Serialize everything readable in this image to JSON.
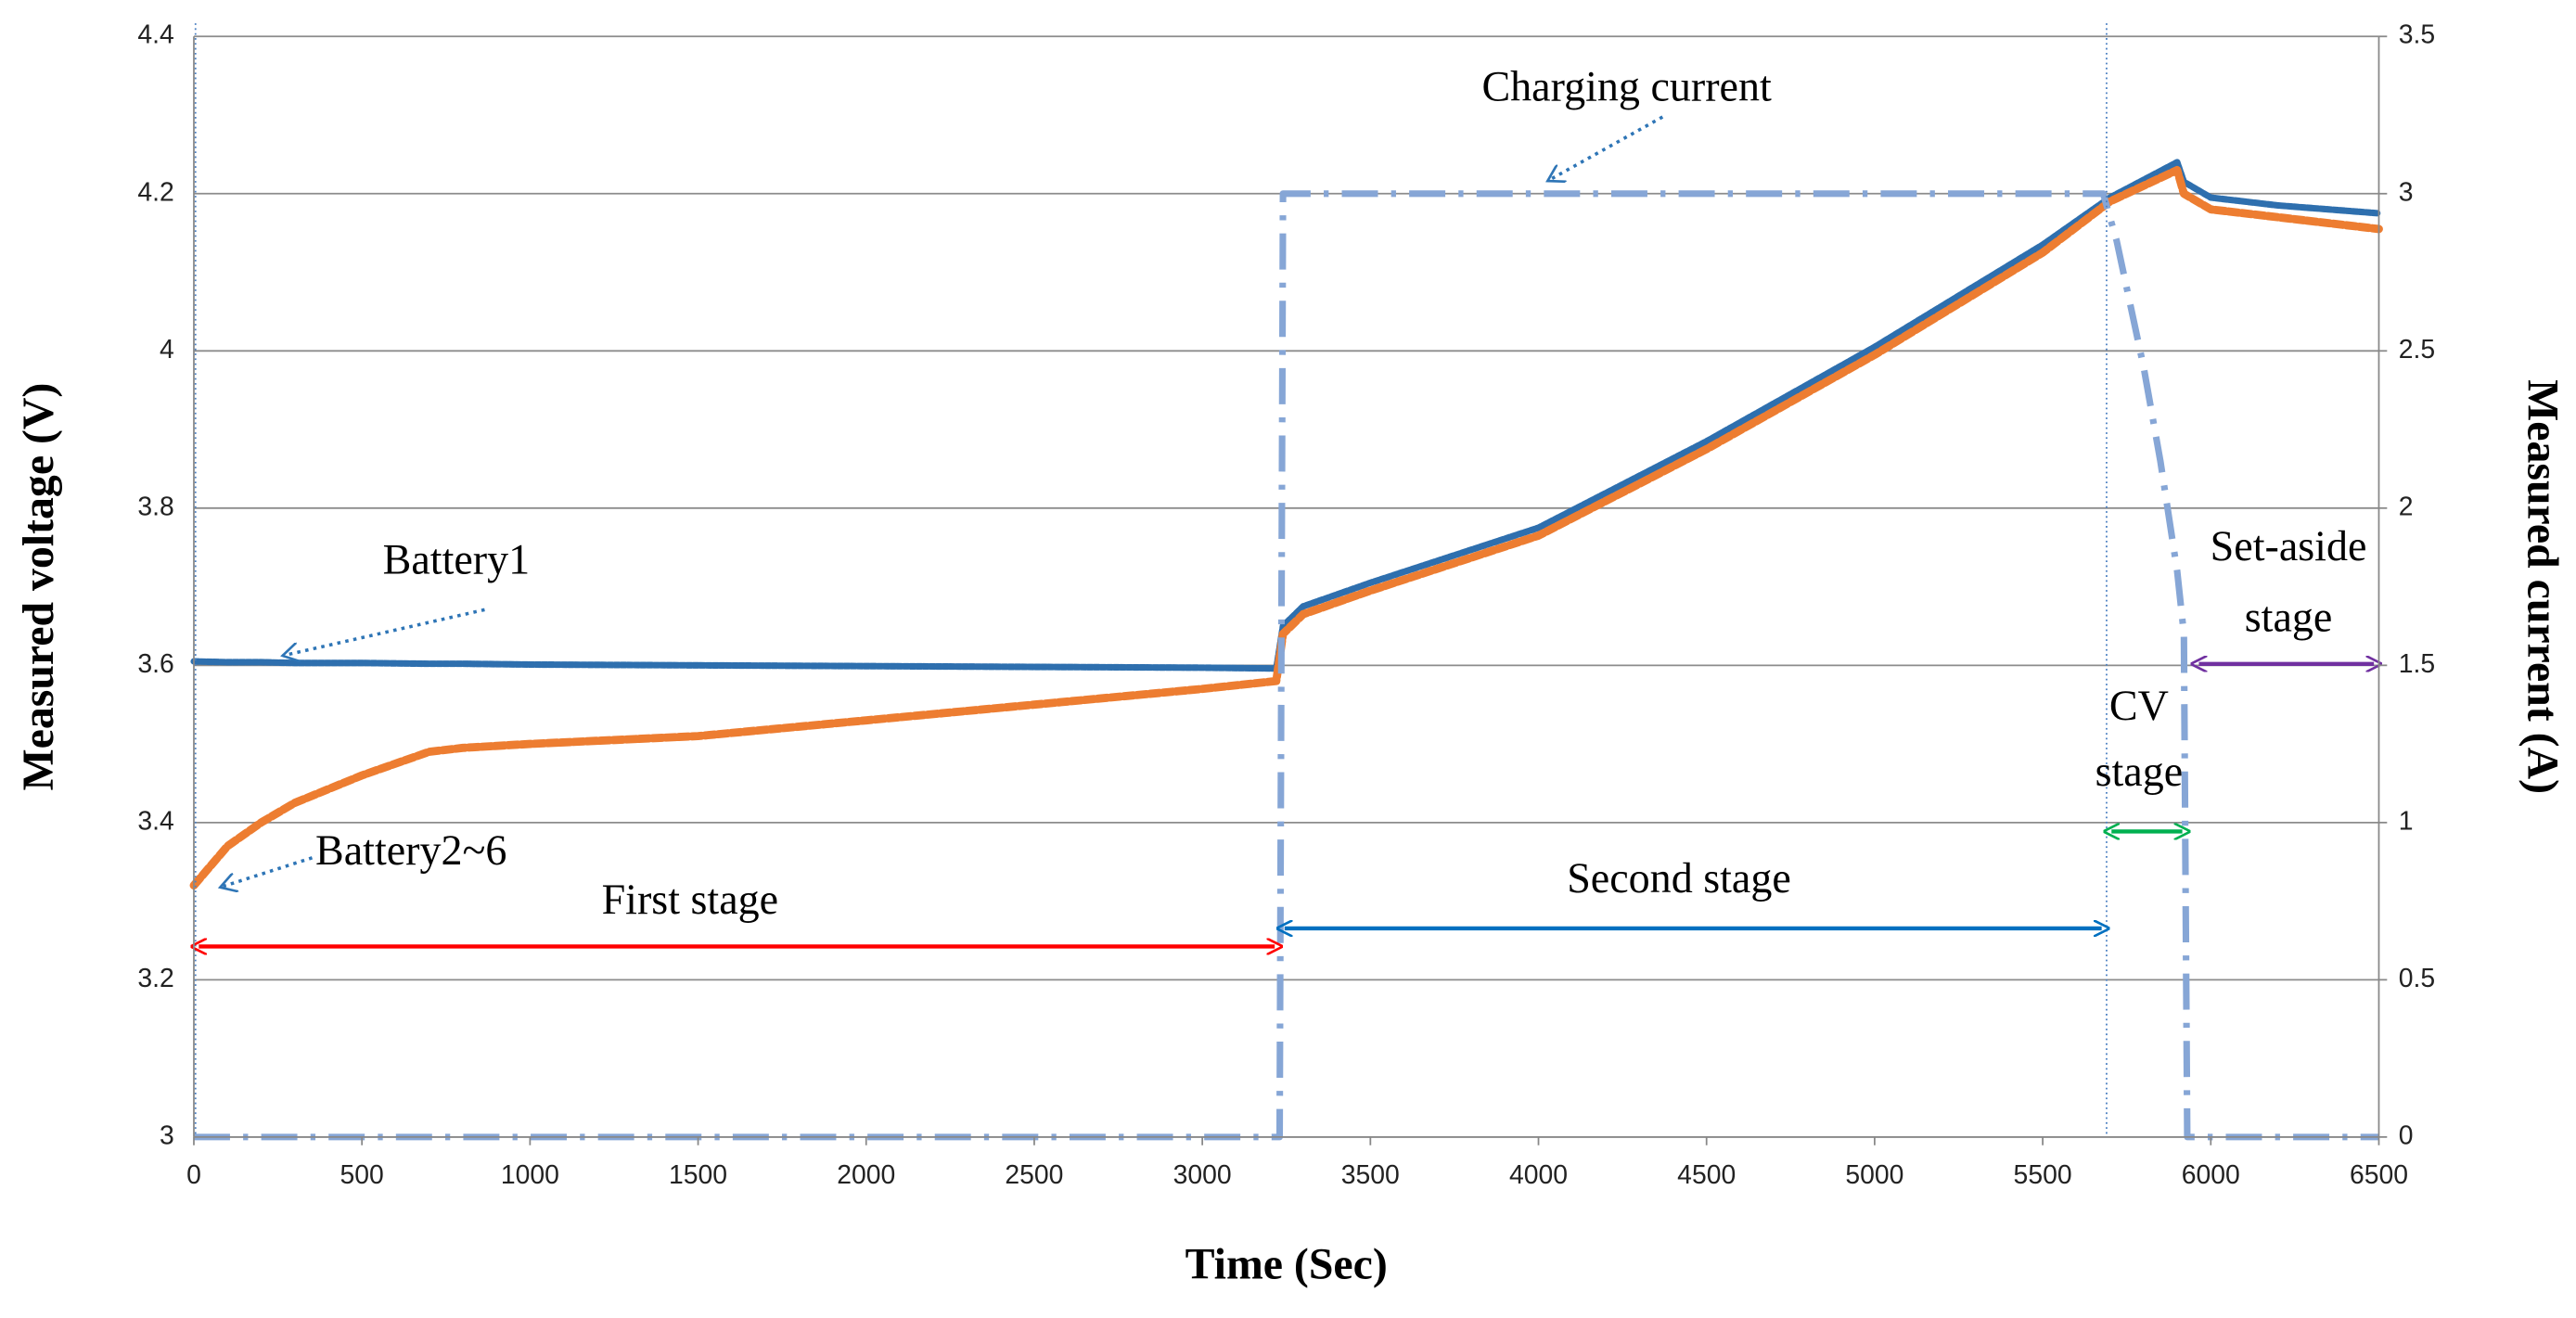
{
  "chart_data": {
    "type": "line",
    "x_label": "Time (Sec)",
    "y_label": "Measured voltage (V)",
    "y2_label": "Measured current (A)",
    "xlim": [
      0,
      6500
    ],
    "xticks": [
      0,
      500,
      1000,
      1500,
      2000,
      2500,
      3000,
      3500,
      4000,
      4500,
      5000,
      5500,
      6000,
      6500
    ],
    "ylim": [
      3,
      4.4
    ],
    "yticks": [
      3,
      3.2,
      3.4,
      3.6,
      3.8,
      4,
      4.2,
      4.4
    ],
    "y2lim": [
      0,
      3.5
    ],
    "y2ticks": [
      0,
      0.5,
      1,
      1.5,
      2,
      2.5,
      3,
      3.5
    ],
    "grid": true,
    "x": [
      0,
      100,
      200,
      300,
      500,
      700,
      800,
      1000,
      1500,
      2000,
      2500,
      3000,
      3220,
      3240,
      3300,
      3500,
      4000,
      4500,
      5000,
      5500,
      5700,
      5900,
      5920,
      6000,
      6200,
      6500
    ],
    "series": [
      {
        "name": "Battery1",
        "color": "#2e6fae",
        "values": [
          3.605,
          3.604,
          3.604,
          3.603,
          3.603,
          3.602,
          3.602,
          3.601,
          3.6,
          3.599,
          3.598,
          3.597,
          3.596,
          3.65,
          3.675,
          3.705,
          3.775,
          3.885,
          4.005,
          4.135,
          4.195,
          4.24,
          4.215,
          4.195,
          4.185,
          4.175
        ]
      },
      {
        "name": "Battery2~6",
        "color": "#ed7d31",
        "values": [
          3.32,
          3.37,
          3.4,
          3.425,
          3.46,
          3.49,
          3.495,
          3.5,
          3.51,
          3.53,
          3.55,
          3.57,
          3.58,
          3.64,
          3.665,
          3.695,
          3.765,
          3.875,
          3.995,
          4.125,
          4.19,
          4.23,
          4.2,
          4.18,
          4.17,
          4.155
        ]
      },
      {
        "name": "Charging current",
        "color": "#86a6d6",
        "axis": "y2",
        "x": [
          0,
          1000,
          2000,
          3000,
          3230,
          3240,
          4000,
          5000,
          5680,
          5720,
          5760,
          5800,
          5850,
          5900,
          5920,
          5930,
          6000,
          6500
        ],
        "values": [
          0,
          0,
          0,
          0,
          0,
          3,
          3,
          3,
          3,
          2.85,
          2.65,
          2.45,
          2.15,
          1.8,
          1.6,
          0,
          0,
          0
        ]
      }
    ],
    "stages": [
      {
        "label": [
          "First stage"
        ],
        "start": 0,
        "end": 3230,
        "color": "#ff0000"
      },
      {
        "label": [
          "Second stage"
        ],
        "start": 3230,
        "end": 5690,
        "color": "#0070c0"
      },
      {
        "label": [
          "CV",
          "stage"
        ],
        "start": 5690,
        "end": 5930,
        "color": "#00b050"
      },
      {
        "label": [
          "Set-aside",
          "stage"
        ],
        "start": 5950,
        "end": 6500,
        "color": "#7030a0"
      }
    ]
  }
}
